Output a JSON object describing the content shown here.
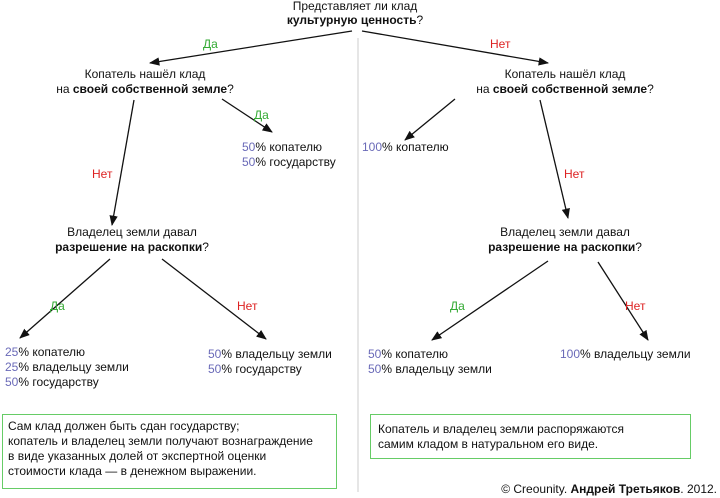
{
  "root": {
    "line1": "Представляет ли клад",
    "bold": "культурную ценность",
    "tail": "?"
  },
  "left": {
    "edge": "Да",
    "node": {
      "line1": "Копатель нашёл клад",
      "prefix": "на ",
      "bold": "своей собственной земле",
      "tail": "?"
    },
    "yes": {
      "edge": "Да",
      "shares": [
        {
          "value": 50,
          "text": "% копателю"
        },
        {
          "value": 50,
          "text": "% государству"
        }
      ]
    },
    "no": {
      "edge": "Нет",
      "node": {
        "line1": "Владелец земли давал",
        "bold": "разрешение на раскопки",
        "tail": "?"
      },
      "yes": {
        "edge": "Да",
        "shares": [
          {
            "value": 25,
            "text": "% копателю"
          },
          {
            "value": 25,
            "text": "% владельцу земли"
          },
          {
            "value": 50,
            "text": "% государству"
          }
        ]
      },
      "no": {
        "edge": "Нет",
        "shares": [
          {
            "value": 50,
            "text": "% владельцу земли"
          },
          {
            "value": 50,
            "text": "% государству"
          }
        ]
      }
    },
    "note": [
      "Сам клад должен быть сдан государству;",
      "копатель и владелец земли получают вознаграждение",
      "в виде указанных долей от экспертной оценки",
      "стоимости клада — в денежном выражении."
    ]
  },
  "right": {
    "edge": "Нет",
    "node": {
      "line1": "Копатель нашёл клад",
      "prefix": "на ",
      "bold": "своей собственной земле",
      "tail": "?"
    },
    "yes": {
      "shares": [
        {
          "value": 100,
          "text": "% копателю"
        }
      ]
    },
    "no": {
      "edge": "Нет",
      "node": {
        "line1": "Владелец земли давал",
        "bold": "разрешение на раскопки",
        "tail": "?"
      },
      "yes": {
        "edge": "Да",
        "shares": [
          {
            "value": 50,
            "text": "% копателю"
          },
          {
            "value": 50,
            "text": "% владельцу земли"
          }
        ]
      },
      "no": {
        "edge": "Нет",
        "shares": [
          {
            "value": 100,
            "text": "% владельцу земли"
          }
        ]
      }
    },
    "note": [
      "Копатель и владелец земли распоряжаются",
      "самим кладом в натуральном его виде."
    ]
  },
  "footer": {
    "copy": "© Creounity. ",
    "author": "Андрей Третьяков",
    "year": ". 2012."
  }
}
